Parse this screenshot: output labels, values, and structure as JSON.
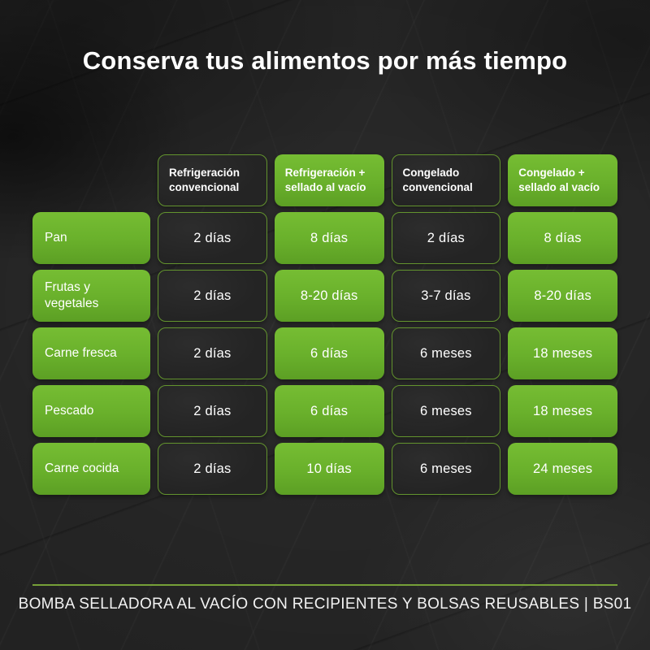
{
  "title": "Conserva tus alimentos por más tiempo",
  "colors": {
    "accent_green": "#69b02b",
    "cell_dark": "#242424",
    "border_green": "#63942e",
    "background_slate": "#222222",
    "divider_green": "#76a038",
    "text": "#ffffff"
  },
  "table": {
    "column_headers": [
      {
        "label": "Refrigeración convencional",
        "variant": "dark"
      },
      {
        "label": "Refrigeración + sellado al vacío",
        "variant": "green"
      },
      {
        "label": "Congelado convencional",
        "variant": "dark"
      },
      {
        "label": "Congelado + sellado al vacío",
        "variant": "green"
      }
    ],
    "rows": [
      {
        "label": "Pan",
        "values": [
          "2 días",
          "8 días",
          "2 días",
          "8 días"
        ]
      },
      {
        "label": "Frutas y vegetales",
        "values": [
          "2 días",
          "8-20 días",
          "3-7 días",
          "8-20 días"
        ]
      },
      {
        "label": "Carne fresca",
        "values": [
          "2 días",
          "6 días",
          "6 meses",
          "18 meses"
        ]
      },
      {
        "label": "Pescado",
        "values": [
          "2 días",
          "6 días",
          "6 meses",
          "18 meses"
        ]
      },
      {
        "label": "Carne cocida",
        "values": [
          "2 días",
          "10 días",
          "6 meses",
          "24 meses"
        ]
      }
    ]
  },
  "footer": {
    "text": "BOMBA SELLADORA AL VACÍO CON RECIPIENTES Y BOLSAS REUSABLES | BS01"
  },
  "chart_data": {
    "type": "table",
    "title": "Conserva tus alimentos por más tiempo",
    "columns": [
      "Refrigeración convencional",
      "Refrigeración + sellado al vacío",
      "Congelado convencional",
      "Congelado + sellado al vacío"
    ],
    "rows": [
      {
        "category": "Pan",
        "values": [
          "2 días",
          "8 días",
          "2 días",
          "8 días"
        ]
      },
      {
        "category": "Frutas y vegetales",
        "values": [
          "2 días",
          "8-20 días",
          "3-7 días",
          "8-20 días"
        ]
      },
      {
        "category": "Carne fresca",
        "values": [
          "2 días",
          "6 días",
          "6 meses",
          "18 meses"
        ]
      },
      {
        "category": "Pescado",
        "values": [
          "2 días",
          "6 días",
          "6 meses",
          "18 meses"
        ]
      },
      {
        "category": "Carne cocida",
        "values": [
          "2 días",
          "10 días",
          "6 meses",
          "24 meses"
        ]
      }
    ],
    "caption": "BOMBA SELLADORA AL VACÍO CON RECIPIENTES Y BOLSAS REUSABLES | BS01",
    "highlight_columns_green": [
      1,
      3
    ]
  }
}
